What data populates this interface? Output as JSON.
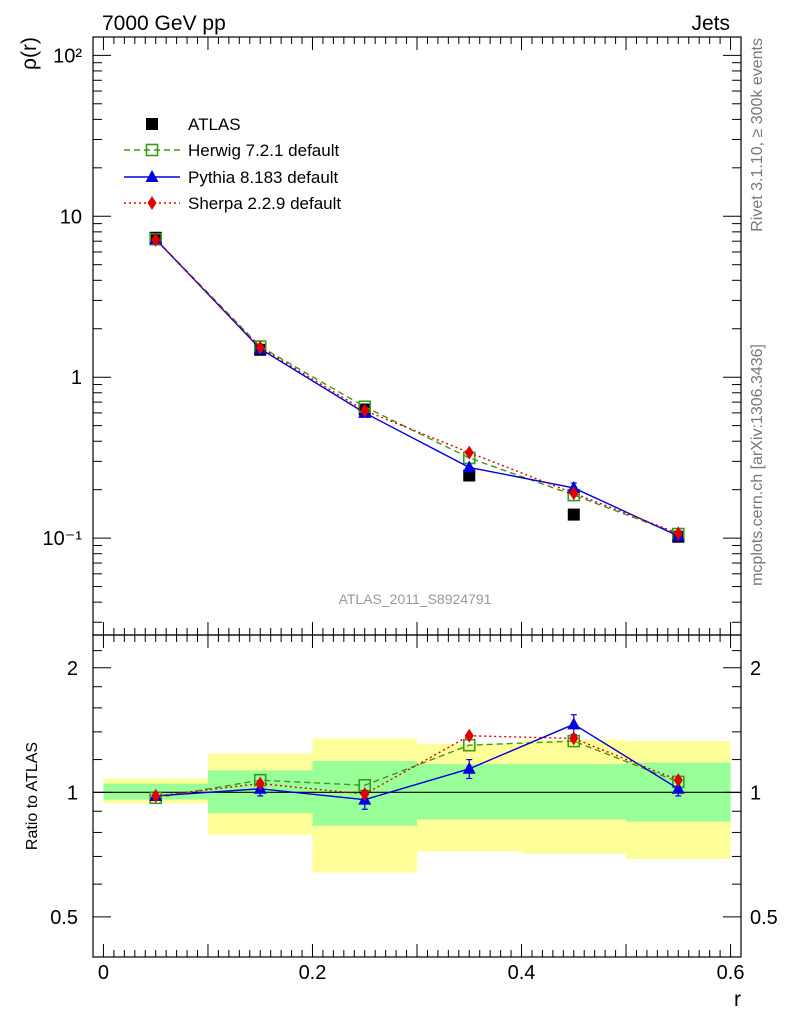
{
  "header": {
    "left": "7000 GeV pp",
    "right": "Jets"
  },
  "side_labels": {
    "rivet": "Rivet 3.1.10, ≥ 300k events",
    "mcplots": "mcplots.cern.ch [arXiv:1306.3436]"
  },
  "watermark": "ATLAS_2011_S8924791",
  "chart_data": [
    {
      "type": "line",
      "panel": "main",
      "ylabel": "ρ(r)",
      "xlabel": "",
      "yscale": "log",
      "ylim": [
        0.025,
        130
      ],
      "xlim": [
        -0.01,
        0.61
      ],
      "yticks": [
        {
          "value": 0.1,
          "label": "10⁻¹"
        },
        {
          "value": 1,
          "label": "1"
        },
        {
          "value": 10,
          "label": "10"
        },
        {
          "value": 100,
          "label": "10²"
        }
      ],
      "legend": {
        "position": "top-left"
      },
      "series": [
        {
          "name": "ATLAS",
          "marker": "square",
          "color": "#000000",
          "x": [
            0.05,
            0.15,
            0.25,
            0.35,
            0.45,
            0.55
          ],
          "values": [
            7.35,
            1.48,
            0.63,
            0.245,
            0.14,
            0.102
          ]
        },
        {
          "name": "Herwig 7.2.1 default",
          "marker": "open-square",
          "color": "#3a9a1a",
          "linestyle": "dashed",
          "x": [
            0.05,
            0.15,
            0.25,
            0.35,
            0.45,
            0.55
          ],
          "values": [
            7.2,
            1.55,
            0.655,
            0.315,
            0.185,
            0.106
          ]
        },
        {
          "name": "Pythia 8.183 default",
          "marker": "triangle",
          "color": "#0000dd",
          "linestyle": "solid",
          "x": [
            0.05,
            0.15,
            0.25,
            0.35,
            0.45,
            0.55
          ],
          "values": [
            7.2,
            1.5,
            0.6,
            0.275,
            0.205,
            0.103
          ],
          "errors": [
            0,
            0,
            0,
            0,
            0.015,
            0
          ]
        },
        {
          "name": "Sherpa 2.2.9 default",
          "marker": "diamond",
          "color": "#e00000",
          "linestyle": "dotted",
          "x": [
            0.05,
            0.15,
            0.25,
            0.35,
            0.45,
            0.55
          ],
          "values": [
            7.15,
            1.53,
            0.62,
            0.34,
            0.19,
            0.107
          ]
        }
      ]
    },
    {
      "type": "line",
      "panel": "ratio",
      "ylabel": "Ratio to ATLAS",
      "xlabel": "r",
      "yscale": "log",
      "ylim": [
        0.4,
        2.4
      ],
      "xlim": [
        -0.01,
        0.61
      ],
      "yticks": [
        {
          "value": 0.5,
          "label": "0.5"
        },
        {
          "value": 1,
          "label": "1"
        },
        {
          "value": 2,
          "label": "2"
        }
      ],
      "xticks": [
        {
          "value": 0,
          "label": "0"
        },
        {
          "value": 0.2,
          "label": "0.2"
        },
        {
          "value": 0.4,
          "label": "0.4"
        },
        {
          "value": 0.6,
          "label": "0.6"
        }
      ],
      "bands": [
        {
          "x0": 0.0,
          "x1": 0.1,
          "yellow": [
            0.94,
            1.08
          ],
          "green": [
            0.96,
            1.05
          ]
        },
        {
          "x0": 0.1,
          "x1": 0.2,
          "yellow": [
            0.79,
            1.24
          ],
          "green": [
            0.89,
            1.13
          ]
        },
        {
          "x0": 0.2,
          "x1": 0.3,
          "yellow": [
            0.64,
            1.35
          ],
          "green": [
            0.83,
            1.19
          ]
        },
        {
          "x0": 0.3,
          "x1": 0.4,
          "yellow": [
            0.72,
            1.31
          ],
          "green": [
            0.86,
            1.17
          ]
        },
        {
          "x0": 0.4,
          "x1": 0.5,
          "yellow": [
            0.71,
            1.34
          ],
          "green": [
            0.86,
            1.17
          ]
        },
        {
          "x0": 0.5,
          "x1": 0.6,
          "yellow": [
            0.69,
            1.33
          ],
          "green": [
            0.85,
            1.18
          ]
        }
      ],
      "series": [
        {
          "name": "Herwig 7.2.1 default",
          "marker": "open-square",
          "color": "#3a9a1a",
          "linestyle": "dashed",
          "x": [
            0.05,
            0.15,
            0.25,
            0.35,
            0.45,
            0.55
          ],
          "values": [
            0.97,
            1.07,
            1.04,
            1.3,
            1.33,
            1.06
          ]
        },
        {
          "name": "Pythia 8.183 default",
          "marker": "triangle",
          "color": "#0000dd",
          "linestyle": "solid",
          "x": [
            0.05,
            0.15,
            0.25,
            0.35,
            0.45,
            0.55
          ],
          "values": [
            0.98,
            1.02,
            0.96,
            1.14,
            1.46,
            1.02
          ],
          "errors": [
            0.02,
            0.04,
            0.05,
            0.06,
            0.08,
            0.04
          ]
        },
        {
          "name": "Sherpa 2.2.9 default",
          "marker": "diamond",
          "color": "#e00000",
          "linestyle": "dotted",
          "x": [
            0.05,
            0.15,
            0.25,
            0.35,
            0.45,
            0.55
          ],
          "values": [
            0.98,
            1.05,
            0.99,
            1.37,
            1.35,
            1.07
          ]
        }
      ]
    }
  ]
}
